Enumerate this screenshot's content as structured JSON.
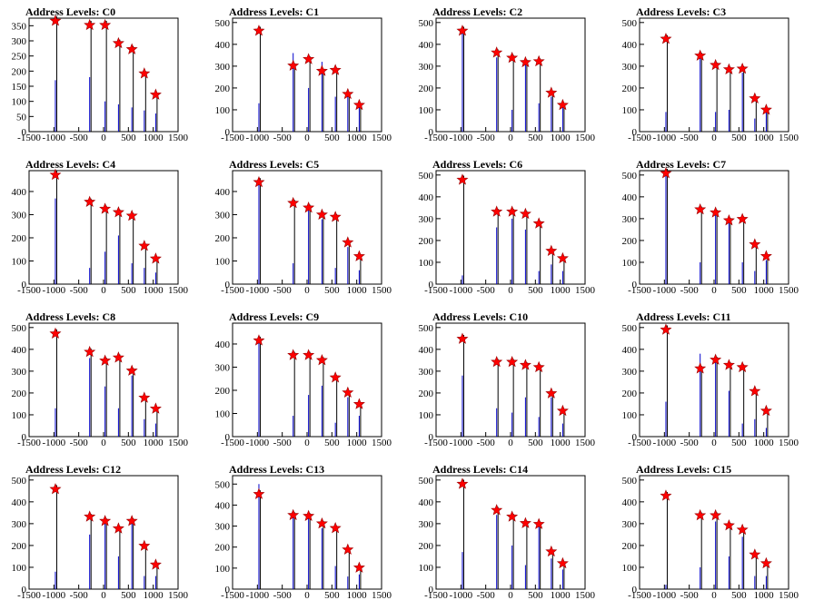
{
  "chart_data": [
    {
      "type": "histogram",
      "title": "Address Levels: C0",
      "xlim": [
        -1500,
        1500
      ],
      "ylim": [
        0,
        375
      ],
      "yticks": [
        0,
        50,
        100,
        150,
        200,
        250,
        300,
        350
      ],
      "xticks": [
        -1500,
        -1000,
        -500,
        0,
        500,
        1000,
        1500
      ],
      "peaks": [
        {
          "x": -970,
          "y": 366,
          "bar": 170
        },
        {
          "x": -280,
          "y": 352,
          "bar": 180
        },
        {
          "x": 30,
          "y": 352,
          "bar": 100
        },
        {
          "x": 300,
          "y": 292,
          "bar": 90
        },
        {
          "x": 570,
          "y": 272,
          "bar": 80
        },
        {
          "x": 820,
          "y": 192,
          "bar": 70
        },
        {
          "x": 1050,
          "y": 122,
          "bar": 60
        }
      ]
    },
    {
      "type": "histogram",
      "title": "Address Levels: C1",
      "xlim": [
        -1500,
        1500
      ],
      "ylim": [
        0,
        520
      ],
      "yticks": [
        0,
        100,
        200,
        300,
        400,
        500
      ],
      "xticks": [
        -1500,
        -1000,
        -500,
        0,
        500,
        1000,
        1500
      ],
      "peaks": [
        {
          "x": -970,
          "y": 462,
          "bar": 130
        },
        {
          "x": -280,
          "y": 302,
          "bar": 360
        },
        {
          "x": 30,
          "y": 332,
          "bar": 200
        },
        {
          "x": 300,
          "y": 278,
          "bar": 320
        },
        {
          "x": 570,
          "y": 282,
          "bar": 160
        },
        {
          "x": 820,
          "y": 172,
          "bar": 180
        },
        {
          "x": 1050,
          "y": 122,
          "bar": 140
        }
      ]
    },
    {
      "type": "histogram",
      "title": "Address Levels: C2",
      "xlim": [
        -1500,
        1500
      ],
      "ylim": [
        0,
        520
      ],
      "yticks": [
        0,
        100,
        200,
        300,
        400,
        500
      ],
      "xticks": [
        -1500,
        -1000,
        -500,
        0,
        500,
        1000,
        1500
      ],
      "peaks": [
        {
          "x": -970,
          "y": 462,
          "bar": 460
        },
        {
          "x": -280,
          "y": 362,
          "bar": 340
        },
        {
          "x": 30,
          "y": 338,
          "bar": 100
        },
        {
          "x": 300,
          "y": 318,
          "bar": 330
        },
        {
          "x": 570,
          "y": 322,
          "bar": 130
        },
        {
          "x": 820,
          "y": 178,
          "bar": 160
        },
        {
          "x": 1050,
          "y": 122,
          "bar": 110
        }
      ]
    },
    {
      "type": "histogram",
      "title": "Address Levels: C3",
      "xlim": [
        -1500,
        1500
      ],
      "ylim": [
        0,
        520
      ],
      "yticks": [
        0,
        100,
        200,
        300,
        400,
        500
      ],
      "xticks": [
        -1500,
        -1000,
        -500,
        0,
        500,
        1000,
        1500
      ],
      "peaks": [
        {
          "x": -970,
          "y": 425,
          "bar": 90
        },
        {
          "x": -280,
          "y": 348,
          "bar": 360
        },
        {
          "x": 30,
          "y": 305,
          "bar": 90
        },
        {
          "x": 300,
          "y": 285,
          "bar": 100
        },
        {
          "x": 570,
          "y": 288,
          "bar": 270
        },
        {
          "x": 820,
          "y": 152,
          "bar": 60
        },
        {
          "x": 1050,
          "y": 100,
          "bar": 110
        }
      ]
    },
    {
      "type": "histogram",
      "title": "Address Levels: C4",
      "xlim": [
        -1500,
        1500
      ],
      "ylim": [
        0,
        490
      ],
      "yticks": [
        0,
        100,
        200,
        300,
        400
      ],
      "xticks": [
        -1500,
        -1000,
        -500,
        0,
        500,
        1000,
        1500
      ],
      "peaks": [
        {
          "x": -970,
          "y": 472,
          "bar": 370
        },
        {
          "x": -280,
          "y": 355,
          "bar": 70
        },
        {
          "x": 30,
          "y": 325,
          "bar": 140
        },
        {
          "x": 300,
          "y": 310,
          "bar": 210
        },
        {
          "x": 570,
          "y": 295,
          "bar": 90
        },
        {
          "x": 820,
          "y": 165,
          "bar": 70
        },
        {
          "x": 1050,
          "y": 110,
          "bar": 50
        }
      ]
    },
    {
      "type": "histogram",
      "title": "Address Levels: C5",
      "xlim": [
        -1500,
        1500
      ],
      "ylim": [
        0,
        490
      ],
      "yticks": [
        0,
        100,
        200,
        300,
        400
      ],
      "xticks": [
        -1500,
        -1000,
        -500,
        0,
        500,
        1000,
        1500
      ],
      "peaks": [
        {
          "x": -970,
          "y": 440,
          "bar": 440
        },
        {
          "x": -280,
          "y": 350,
          "bar": 90
        },
        {
          "x": 30,
          "y": 330,
          "bar": 330
        },
        {
          "x": 300,
          "y": 300,
          "bar": 280
        },
        {
          "x": 570,
          "y": 290,
          "bar": 70
        },
        {
          "x": 820,
          "y": 180,
          "bar": 160
        },
        {
          "x": 1050,
          "y": 120,
          "bar": 60
        }
      ]
    },
    {
      "type": "histogram",
      "title": "Address Levels: C6",
      "xlim": [
        -1500,
        1500
      ],
      "ylim": [
        0,
        520
      ],
      "yticks": [
        0,
        100,
        200,
        300,
        400,
        500
      ],
      "xticks": [
        -1500,
        -1000,
        -500,
        0,
        500,
        1000,
        1500
      ],
      "peaks": [
        {
          "x": -970,
          "y": 478,
          "bar": 40
        },
        {
          "x": -280,
          "y": 332,
          "bar": 260
        },
        {
          "x": 30,
          "y": 332,
          "bar": 300
        },
        {
          "x": 300,
          "y": 322,
          "bar": 250
        },
        {
          "x": 570,
          "y": 278,
          "bar": 60
        },
        {
          "x": 820,
          "y": 152,
          "bar": 90
        },
        {
          "x": 1050,
          "y": 118,
          "bar": 60
        }
      ]
    },
    {
      "type": "histogram",
      "title": "Address Levels: C7",
      "xlim": [
        -1500,
        1500
      ],
      "ylim": [
        0,
        520
      ],
      "yticks": [
        0,
        100,
        200,
        300,
        400,
        500
      ],
      "xticks": [
        -1500,
        -1000,
        -500,
        0,
        500,
        1000,
        1500
      ],
      "peaks": [
        {
          "x": -970,
          "y": 508,
          "bar": 500
        },
        {
          "x": -280,
          "y": 342,
          "bar": 100
        },
        {
          "x": 30,
          "y": 328,
          "bar": 320
        },
        {
          "x": 300,
          "y": 292,
          "bar": 290
        },
        {
          "x": 570,
          "y": 298,
          "bar": 100
        },
        {
          "x": 820,
          "y": 182,
          "bar": 60
        },
        {
          "x": 1050,
          "y": 128,
          "bar": 110
        }
      ]
    },
    {
      "type": "histogram",
      "title": "Address Levels: C8",
      "xlim": [
        -1500,
        1500
      ],
      "ylim": [
        0,
        520
      ],
      "yticks": [
        0,
        100,
        200,
        300,
        400,
        500
      ],
      "xticks": [
        -1500,
        -1000,
        -500,
        0,
        500,
        1000,
        1500
      ],
      "peaks": [
        {
          "x": -970,
          "y": 472,
          "bar": 130
        },
        {
          "x": -280,
          "y": 388,
          "bar": 360
        },
        {
          "x": 30,
          "y": 348,
          "bar": 230
        },
        {
          "x": 300,
          "y": 362,
          "bar": 130
        },
        {
          "x": 570,
          "y": 302,
          "bar": 280
        },
        {
          "x": 820,
          "y": 178,
          "bar": 80
        },
        {
          "x": 1050,
          "y": 128,
          "bar": 60
        }
      ]
    },
    {
      "type": "histogram",
      "title": "Address Levels: C9",
      "xlim": [
        -1500,
        1500
      ],
      "ylim": [
        0,
        490
      ],
      "yticks": [
        0,
        100,
        200,
        300,
        400
      ],
      "xticks": [
        -1500,
        -1000,
        -500,
        0,
        500,
        1000,
        1500
      ],
      "peaks": [
        {
          "x": -970,
          "y": 415,
          "bar": 430
        },
        {
          "x": -280,
          "y": 352,
          "bar": 90
        },
        {
          "x": 30,
          "y": 352,
          "bar": 180
        },
        {
          "x": 300,
          "y": 330,
          "bar": 220
        },
        {
          "x": 570,
          "y": 255,
          "bar": 60
        },
        {
          "x": 820,
          "y": 190,
          "bar": 170
        },
        {
          "x": 1050,
          "y": 140,
          "bar": 90
        }
      ]
    },
    {
      "type": "histogram",
      "title": "Address Levels: C10",
      "xlim": [
        -1500,
        1500
      ],
      "ylim": [
        0,
        520
      ],
      "yticks": [
        0,
        100,
        200,
        300,
        400,
        500
      ],
      "xticks": [
        -1500,
        -1000,
        -500,
        0,
        500,
        1000,
        1500
      ],
      "peaks": [
        {
          "x": -970,
          "y": 448,
          "bar": 280
        },
        {
          "x": -280,
          "y": 342,
          "bar": 130
        },
        {
          "x": 30,
          "y": 342,
          "bar": 110
        },
        {
          "x": 300,
          "y": 328,
          "bar": 180
        },
        {
          "x": 570,
          "y": 318,
          "bar": 90
        },
        {
          "x": 820,
          "y": 198,
          "bar": 180
        },
        {
          "x": 1050,
          "y": 118,
          "bar": 60
        }
      ]
    },
    {
      "type": "histogram",
      "title": "Address Levels: C11",
      "xlim": [
        -1500,
        1500
      ],
      "ylim": [
        0,
        520
      ],
      "yticks": [
        0,
        100,
        200,
        300,
        400,
        500
      ],
      "xticks": [
        -1500,
        -1000,
        -500,
        0,
        500,
        1000,
        1500
      ],
      "peaks": [
        {
          "x": -970,
          "y": 490,
          "bar": 160
        },
        {
          "x": -280,
          "y": 312,
          "bar": 380
        },
        {
          "x": 30,
          "y": 352,
          "bar": 340
        },
        {
          "x": 300,
          "y": 328,
          "bar": 210
        },
        {
          "x": 570,
          "y": 318,
          "bar": 60
        },
        {
          "x": 820,
          "y": 208,
          "bar": 80
        },
        {
          "x": 1050,
          "y": 118,
          "bar": 40
        }
      ]
    },
    {
      "type": "histogram",
      "title": "Address Levels: C12",
      "xlim": [
        -1500,
        1500
      ],
      "ylim": [
        0,
        520
      ],
      "yticks": [
        0,
        100,
        200,
        300,
        400,
        500
      ],
      "xticks": [
        -1500,
        -1000,
        -500,
        0,
        500,
        1000,
        1500
      ],
      "peaks": [
        {
          "x": -970,
          "y": 458,
          "bar": 80
        },
        {
          "x": -280,
          "y": 332,
          "bar": 250
        },
        {
          "x": 30,
          "y": 312,
          "bar": 320
        },
        {
          "x": 300,
          "y": 278,
          "bar": 150
        },
        {
          "x": 570,
          "y": 312,
          "bar": 310
        },
        {
          "x": 820,
          "y": 198,
          "bar": 60
        },
        {
          "x": 1050,
          "y": 112,
          "bar": 60
        }
      ]
    },
    {
      "type": "histogram",
      "title": "Address Levels: C13",
      "xlim": [
        -1500,
        1500
      ],
      "ylim": [
        0,
        540
      ],
      "yticks": [
        0,
        100,
        200,
        300,
        400,
        500
      ],
      "xticks": [
        -1500,
        -1000,
        -500,
        0,
        500,
        1000,
        1500
      ],
      "peaks": [
        {
          "x": -970,
          "y": 452,
          "bar": 500
        },
        {
          "x": -280,
          "y": 352,
          "bar": 350
        },
        {
          "x": 30,
          "y": 348,
          "bar": 360
        },
        {
          "x": 300,
          "y": 312,
          "bar": 290
        },
        {
          "x": 570,
          "y": 290,
          "bar": 110
        },
        {
          "x": 820,
          "y": 188,
          "bar": 60
        },
        {
          "x": 1050,
          "y": 102,
          "bar": 70
        }
      ]
    },
    {
      "type": "histogram",
      "title": "Address Levels: C14",
      "xlim": [
        -1500,
        1500
      ],
      "ylim": [
        0,
        520
      ],
      "yticks": [
        0,
        100,
        200,
        300,
        400,
        500
      ],
      "xticks": [
        -1500,
        -1000,
        -500,
        0,
        500,
        1000,
        1500
      ],
      "peaks": [
        {
          "x": -970,
          "y": 482,
          "bar": 170
        },
        {
          "x": -280,
          "y": 362,
          "bar": 340
        },
        {
          "x": 30,
          "y": 332,
          "bar": 200
        },
        {
          "x": 300,
          "y": 302,
          "bar": 110
        },
        {
          "x": 570,
          "y": 298,
          "bar": 320
        },
        {
          "x": 820,
          "y": 172,
          "bar": 140
        },
        {
          "x": 1050,
          "y": 118,
          "bar": 90
        }
      ]
    },
    {
      "type": "histogram",
      "title": "Address Levels: C15",
      "xlim": [
        -1500,
        1500
      ],
      "ylim": [
        0,
        520
      ],
      "yticks": [
        0,
        100,
        200,
        300,
        400,
        500
      ],
      "xticks": [
        -1500,
        -1000,
        -500,
        0,
        500,
        1000,
        1500
      ],
      "peaks": [
        {
          "x": -970,
          "y": 428,
          "bar": 20
        },
        {
          "x": -280,
          "y": 338,
          "bar": 100
        },
        {
          "x": 30,
          "y": 338,
          "bar": 310
        },
        {
          "x": 300,
          "y": 292,
          "bar": 150
        },
        {
          "x": 570,
          "y": 272,
          "bar": 240
        },
        {
          "x": 820,
          "y": 158,
          "bar": 60
        },
        {
          "x": 1050,
          "y": 118,
          "bar": 60
        }
      ]
    }
  ]
}
